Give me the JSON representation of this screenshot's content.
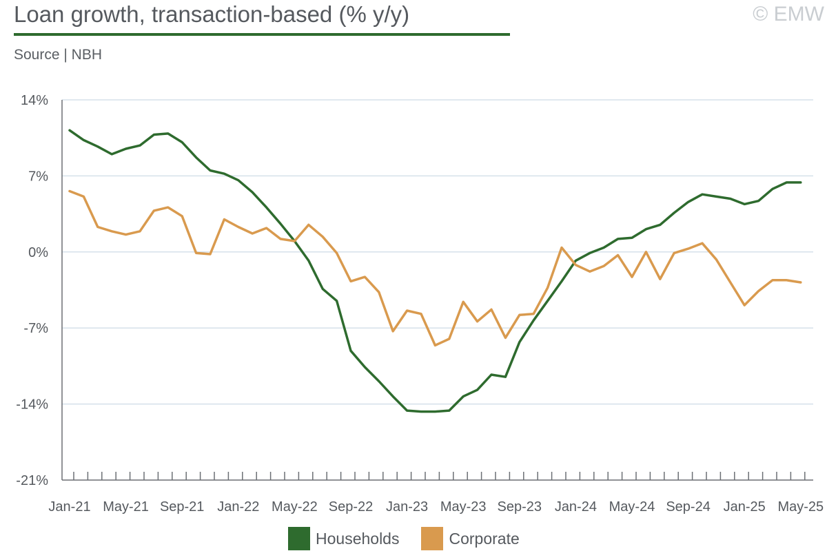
{
  "header": {
    "title": "Loan growth, transaction-based (% y/y)",
    "subtitle": "Source | NBH",
    "watermark": "© EMW"
  },
  "colors": {
    "households": "#2e6b2e",
    "corporate": "#d99a4e",
    "grid": "#d5e0ea",
    "axis": "#6b6f74"
  },
  "chart_data": {
    "type": "line",
    "title": "Loan growth, transaction-based (% y/y)",
    "xlabel": "",
    "ylabel": "",
    "ylim": [
      -21,
      14
    ],
    "yticks": [
      14,
      7,
      0,
      -7,
      -14,
      -21
    ],
    "ytick_labels": [
      "14%",
      "7%",
      "0%",
      "-7%",
      "-14%",
      "-21%"
    ],
    "x_tick_labels": [
      "Jan-21",
      "May-21",
      "Sep-21",
      "Jan-22",
      "May-22",
      "Sep-22",
      "Jan-23",
      "May-23",
      "Sep-23",
      "Jan-24",
      "May-24",
      "Sep-24",
      "Jan-25",
      "May-25"
    ],
    "x_tick_label_every": 4,
    "grid": true,
    "legend_position": "bottom",
    "categories": [
      "Jan-21",
      "Feb-21",
      "Mar-21",
      "Apr-21",
      "May-21",
      "Jun-21",
      "Jul-21",
      "Aug-21",
      "Sep-21",
      "Oct-21",
      "Nov-21",
      "Dec-21",
      "Jan-22",
      "Feb-22",
      "Mar-22",
      "Apr-22",
      "May-22",
      "Jun-22",
      "Jul-22",
      "Aug-22",
      "Sep-22",
      "Oct-22",
      "Nov-22",
      "Dec-22",
      "Jan-23",
      "Feb-23",
      "Mar-23",
      "Apr-23",
      "May-23",
      "Jun-23",
      "Jul-23",
      "Aug-23",
      "Sep-23",
      "Oct-23",
      "Nov-23",
      "Dec-23",
      "Jan-24",
      "Feb-24",
      "Mar-24",
      "Apr-24",
      "May-24",
      "Jun-24",
      "Jul-24",
      "Aug-24",
      "Sep-24",
      "Oct-24",
      "Nov-24",
      "Dec-24",
      "Jan-25",
      "Feb-25",
      "Mar-25",
      "Apr-25",
      "May-25"
    ],
    "series": [
      {
        "name": "Households",
        "color": "#2e6b2e",
        "values": [
          11.2,
          10.3,
          9.7,
          9.0,
          9.5,
          9.8,
          10.8,
          10.9,
          10.1,
          8.7,
          7.5,
          7.2,
          6.6,
          5.5,
          4.1,
          2.6,
          1.0,
          -0.8,
          -3.4,
          -4.5,
          -9.1,
          -10.6,
          -11.9,
          -13.3,
          -14.6,
          -14.7,
          -14.7,
          -14.6,
          -13.3,
          -12.7,
          -11.3,
          -11.5,
          -8.3,
          -6.3,
          -4.5,
          -2.7,
          -0.8,
          -0.1,
          0.4,
          1.2,
          1.3,
          2.1,
          2.5,
          3.6,
          4.6,
          5.3,
          5.1,
          4.9,
          4.4,
          4.7,
          5.8,
          6.4,
          6.4
        ]
      },
      {
        "name": "Corporate",
        "color": "#d99a4e",
        "values": [
          5.6,
          5.1,
          2.3,
          1.9,
          1.6,
          1.9,
          3.8,
          4.1,
          3.3,
          -0.1,
          -0.2,
          3.0,
          2.3,
          1.7,
          2.2,
          1.2,
          1.0,
          2.5,
          1.4,
          -0.1,
          -2.7,
          -2.3,
          -3.7,
          -7.3,
          -5.4,
          -5.7,
          -8.6,
          -8.0,
          -4.6,
          -6.4,
          -5.3,
          -7.9,
          -5.8,
          -5.7,
          -3.3,
          0.4,
          -1.2,
          -1.8,
          -1.3,
          -0.3,
          -2.3,
          0.0,
          -2.5,
          -0.1,
          0.3,
          0.8,
          -0.7,
          -2.8,
          -4.9,
          -3.6,
          -2.6,
          -2.6,
          -2.8
        ]
      }
    ]
  }
}
